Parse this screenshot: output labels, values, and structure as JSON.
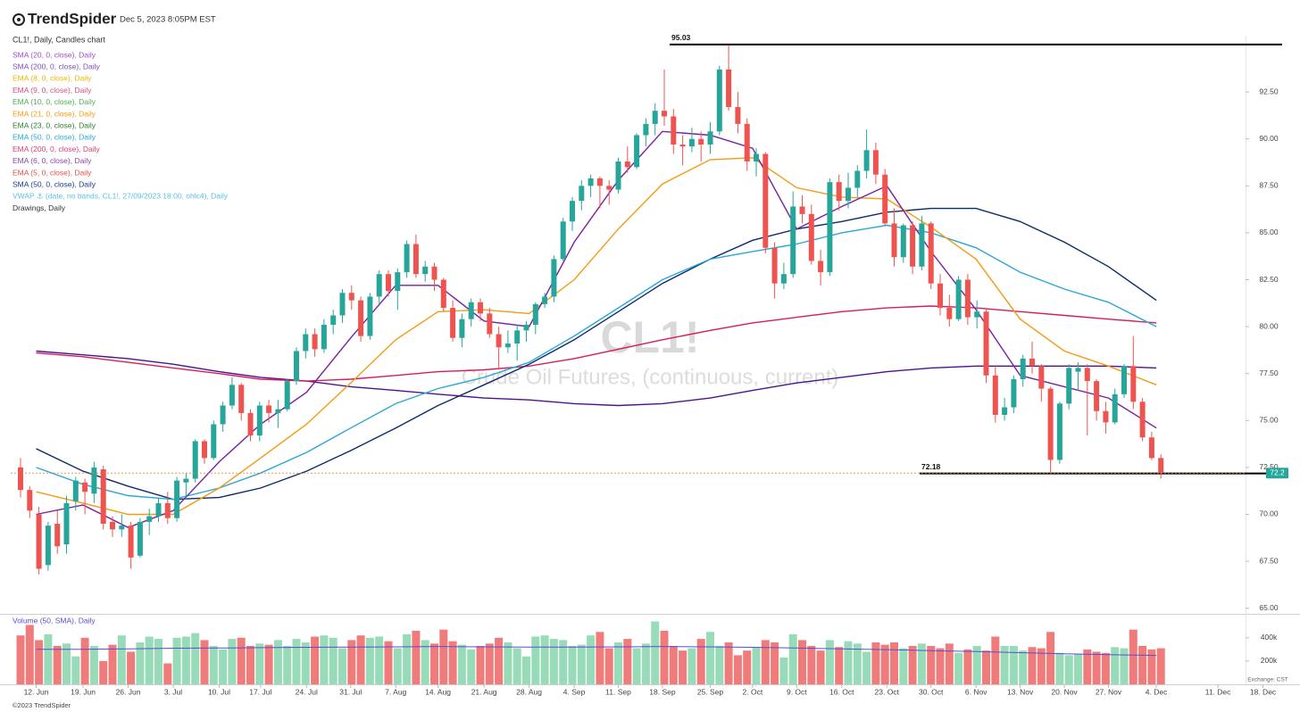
{
  "header": {
    "brand": "TrendSpider",
    "timestamp": "Dec 5, 2023 8:05PM EST"
  },
  "chart_data": {
    "type": "candlestick",
    "title": "CL1!, Daily, Candles chart",
    "watermark": "CL1!",
    "watermark_subtitle": "Crude Oil Futures, (continuous, current)",
    "up_color": "#26a69a",
    "down_color": "#ef5350",
    "ylim": [
      64.7,
      95.5
    ],
    "yticks": [
      {
        "value": 65,
        "label": "65.00"
      },
      {
        "value": 67.5,
        "label": "67.50"
      },
      {
        "value": 70,
        "label": "70.00"
      },
      {
        "value": 72.5,
        "label": "72.50"
      },
      {
        "value": 75,
        "label": "75.00"
      },
      {
        "value": 77.5,
        "label": "77.50"
      },
      {
        "value": 80,
        "label": "80.00"
      },
      {
        "value": 82.5,
        "label": "82.50"
      },
      {
        "value": 85,
        "label": "85.00"
      },
      {
        "value": 87.5,
        "label": "87.50"
      },
      {
        "value": 90,
        "label": "90.00"
      },
      {
        "value": 92.5,
        "label": "92.50"
      }
    ],
    "xticks": [
      {
        "value": 1.7,
        "label": "12. Jun"
      },
      {
        "value": 6.8,
        "label": "19. Jun"
      },
      {
        "value": 11.7,
        "label": "26. Jun"
      },
      {
        "value": 16.6,
        "label": "3. Jul"
      },
      {
        "value": 21.6,
        "label": "10. Jul"
      },
      {
        "value": 26.1,
        "label": "17. Jul"
      },
      {
        "value": 31.1,
        "label": "24. Jul"
      },
      {
        "value": 35.9,
        "label": "31. Jul"
      },
      {
        "value": 40.8,
        "label": "7. Aug"
      },
      {
        "value": 45.4,
        "label": "14. Aug"
      },
      {
        "value": 50.4,
        "label": "21. Aug"
      },
      {
        "value": 55.3,
        "label": "28. Aug"
      },
      {
        "value": 60.2,
        "label": "4. Sep"
      },
      {
        "value": 65.0,
        "label": "11. Sep"
      },
      {
        "value": 69.8,
        "label": "18. Sep"
      },
      {
        "value": 75.0,
        "label": "25. Sep"
      },
      {
        "value": 79.6,
        "label": "2. Oct"
      },
      {
        "value": 84.4,
        "label": "9. Oct"
      },
      {
        "value": 89.3,
        "label": "16. Oct"
      },
      {
        "value": 94.2,
        "label": "23. Oct"
      },
      {
        "value": 99.0,
        "label": "30. Oct"
      },
      {
        "value": 103.9,
        "label": "6. Nov"
      },
      {
        "value": 108.7,
        "label": "13. Nov"
      },
      {
        "value": 113.5,
        "label": "20. Nov"
      },
      {
        "value": 118.3,
        "label": "27. Nov"
      },
      {
        "value": 123.5,
        "label": "4. Dec"
      },
      {
        "value": 130.2,
        "label": "11. Dec"
      },
      {
        "value": 135.1,
        "label": "18. Dec"
      }
    ],
    "ohlc": [
      [
        72.5,
        73.0,
        70.9,
        71.3
      ],
      [
        71.3,
        71.5,
        69.8,
        70.2
      ],
      [
        70.0,
        70.4,
        66.8,
        67.1
      ],
      [
        67.3,
        69.6,
        67.0,
        69.4
      ],
      [
        69.5,
        70.2,
        67.9,
        68.3
      ],
      [
        68.4,
        71.0,
        67.9,
        70.6
      ],
      [
        70.7,
        72.0,
        70.2,
        71.8
      ],
      [
        71.7,
        71.9,
        70.0,
        71.2
      ],
      [
        71.1,
        72.8,
        70.6,
        72.5
      ],
      [
        72.4,
        72.6,
        69.2,
        69.5
      ],
      [
        69.6,
        69.9,
        68.8,
        69.2
      ],
      [
        69.2,
        70.0,
        68.8,
        69.4
      ],
      [
        69.4,
        69.6,
        67.1,
        67.7
      ],
      [
        67.8,
        69.8,
        67.7,
        69.6
      ],
      [
        69.6,
        70.3,
        68.9,
        69.9
      ],
      [
        69.9,
        70.9,
        69.6,
        70.6
      ],
      [
        70.6,
        71.2,
        69.5,
        69.8
      ],
      [
        69.8,
        72.0,
        69.6,
        71.8
      ],
      [
        71.7,
        72.2,
        70.8,
        71.9
      ],
      [
        71.9,
        74.0,
        71.7,
        73.9
      ],
      [
        73.9,
        74.0,
        72.7,
        73.0
      ],
      [
        73.0,
        75.0,
        72.9,
        74.8
      ],
      [
        74.8,
        76.0,
        74.4,
        75.8
      ],
      [
        75.8,
        77.3,
        75.6,
        76.9
      ],
      [
        76.9,
        77.0,
        75.0,
        75.4
      ],
      [
        75.4,
        75.6,
        73.9,
        74.2
      ],
      [
        74.2,
        76.0,
        73.9,
        75.8
      ],
      [
        75.8,
        76.1,
        74.9,
        75.4
      ],
      [
        75.4,
        76.1,
        74.6,
        75.6
      ],
      [
        75.6,
        77.2,
        75.5,
        77.1
      ],
      [
        77.1,
        78.9,
        76.9,
        78.7
      ],
      [
        78.7,
        79.9,
        78.3,
        79.6
      ],
      [
        79.6,
        79.9,
        78.4,
        78.8
      ],
      [
        78.8,
        80.4,
        78.6,
        80.1
      ],
      [
        80.1,
        80.9,
        79.6,
        80.6
      ],
      [
        80.6,
        82.0,
        80.2,
        81.8
      ],
      [
        81.8,
        82.2,
        80.9,
        81.4
      ],
      [
        81.4,
        81.6,
        79.2,
        79.5
      ],
      [
        79.5,
        81.8,
        79.3,
        81.6
      ],
      [
        81.6,
        83.0,
        81.2,
        82.8
      ],
      [
        82.8,
        83.0,
        81.6,
        81.9
      ],
      [
        81.9,
        83.1,
        80.9,
        82.9
      ],
      [
        82.9,
        84.6,
        82.6,
        84.4
      ],
      [
        84.4,
        84.9,
        82.6,
        82.8
      ],
      [
        82.8,
        83.5,
        82.4,
        83.2
      ],
      [
        83.2,
        83.4,
        81.9,
        82.5
      ],
      [
        82.5,
        82.6,
        80.8,
        81.0
      ],
      [
        81.0,
        81.4,
        79.2,
        79.4
      ],
      [
        79.4,
        80.7,
        78.9,
        80.4
      ],
      [
        80.4,
        81.5,
        80.0,
        81.3
      ],
      [
        81.3,
        81.5,
        80.3,
        80.7
      ],
      [
        80.7,
        81.0,
        79.4,
        79.6
      ],
      [
        79.6,
        80.0,
        77.7,
        78.9
      ],
      [
        78.9,
        79.8,
        78.6,
        79.1
      ],
      [
        79.1,
        80.1,
        78.2,
        79.8
      ],
      [
        79.8,
        80.3,
        79.2,
        80.1
      ],
      [
        80.1,
        81.3,
        79.6,
        81.2
      ],
      [
        81.2,
        81.8,
        81.0,
        81.6
      ],
      [
        81.6,
        83.8,
        81.3,
        83.6
      ],
      [
        83.6,
        85.8,
        83.5,
        85.6
      ],
      [
        85.6,
        86.9,
        85.1,
        86.7
      ],
      [
        86.7,
        87.8,
        86.2,
        87.5
      ],
      [
        87.5,
        88.1,
        86.9,
        87.9
      ],
      [
        87.9,
        88.0,
        86.3,
        87.5
      ],
      [
        87.5,
        87.8,
        86.5,
        87.3
      ],
      [
        87.3,
        89.0,
        87.1,
        88.8
      ],
      [
        88.8,
        89.6,
        88.2,
        88.5
      ],
      [
        88.5,
        90.3,
        88.4,
        90.2
      ],
      [
        90.2,
        91.1,
        89.6,
        90.8
      ],
      [
        90.8,
        91.9,
        90.2,
        91.5
      ],
      [
        91.5,
        93.7,
        90.7,
        91.2
      ],
      [
        91.2,
        91.6,
        89.2,
        89.7
      ],
      [
        89.7,
        90.2,
        88.6,
        89.6
      ],
      [
        89.6,
        90.6,
        89.3,
        90.0
      ],
      [
        90.0,
        90.4,
        88.8,
        89.7
      ],
      [
        89.7,
        90.9,
        89.2,
        90.4
      ],
      [
        90.4,
        93.9,
        90.2,
        93.7
      ],
      [
        93.7,
        95.0,
        91.5,
        91.7
      ],
      [
        91.7,
        92.5,
        90.3,
        90.8
      ],
      [
        90.8,
        91.1,
        88.3,
        88.8
      ],
      [
        88.8,
        89.5,
        88.0,
        89.2
      ],
      [
        89.2,
        89.3,
        83.9,
        84.2
      ],
      [
        84.2,
        84.5,
        81.5,
        82.3
      ],
      [
        82.3,
        83.4,
        82.0,
        82.8
      ],
      [
        82.8,
        87.2,
        82.6,
        86.4
      ],
      [
        86.4,
        87.0,
        85.5,
        86.0
      ],
      [
        86.0,
        86.5,
        83.3,
        83.5
      ],
      [
        83.5,
        84.1,
        82.2,
        82.9
      ],
      [
        82.9,
        87.9,
        82.7,
        87.7
      ],
      [
        87.7,
        88.1,
        86.2,
        86.7
      ],
      [
        86.7,
        88.2,
        86.3,
        87.4
      ],
      [
        87.4,
        88.6,
        86.9,
        88.3
      ],
      [
        88.3,
        90.5,
        87.9,
        89.4
      ],
      [
        89.4,
        89.8,
        87.6,
        88.1
      ],
      [
        88.1,
        88.4,
        85.4,
        85.5
      ],
      [
        85.5,
        86.3,
        83.2,
        83.7
      ],
      [
        83.7,
        85.5,
        83.4,
        85.4
      ],
      [
        85.4,
        85.6,
        82.8,
        83.2
      ],
      [
        83.2,
        85.9,
        83.0,
        85.5
      ],
      [
        85.5,
        85.6,
        82.0,
        82.3
      ],
      [
        82.3,
        82.8,
        80.6,
        81.0
      ],
      [
        81.0,
        81.7,
        80.0,
        80.4
      ],
      [
        80.4,
        82.7,
        80.3,
        82.5
      ],
      [
        82.5,
        82.8,
        80.1,
        80.5
      ],
      [
        80.5,
        81.4,
        79.9,
        80.8
      ],
      [
        80.8,
        80.9,
        77.0,
        77.4
      ],
      [
        77.4,
        77.9,
        74.9,
        75.3
      ],
      [
        75.3,
        76.2,
        75.0,
        75.7
      ],
      [
        75.7,
        77.4,
        75.4,
        77.2
      ],
      [
        77.2,
        78.5,
        76.8,
        78.3
      ],
      [
        78.3,
        79.2,
        77.5,
        77.9
      ],
      [
        77.9,
        78.0,
        76.0,
        76.7
      ],
      [
        76.7,
        76.8,
        72.2,
        72.9
      ],
      [
        72.9,
        76.0,
        72.7,
        75.9
      ],
      [
        75.9,
        78.0,
        75.6,
        77.8
      ],
      [
        77.6,
        78.1,
        76.6,
        77.8
      ],
      [
        77.8,
        78.0,
        74.2,
        77.1
      ],
      [
        77.1,
        77.2,
        75.0,
        75.5
      ],
      [
        75.5,
        76.0,
        74.3,
        74.9
      ],
      [
        74.9,
        76.7,
        74.8,
        76.4
      ],
      [
        76.4,
        78.0,
        76.2,
        77.9
      ],
      [
        77.9,
        79.5,
        75.6,
        76.0
      ],
      [
        76.0,
        76.2,
        73.9,
        74.1
      ],
      [
        74.1,
        74.4,
        72.9,
        73.0
      ],
      [
        73.0,
        73.2,
        71.9,
        72.2
      ]
    ],
    "overlays": [
      {
        "color": "#4a148c",
        "values": [
          78.7,
          78.5,
          78.3,
          78.0,
          77.6,
          77.3,
          77.1,
          76.8,
          76.6,
          76.4,
          76.2,
          76.1,
          75.9,
          75.8,
          75.9,
          76.2,
          76.6,
          77.0,
          77.3,
          77.6,
          77.8,
          77.9,
          77.9,
          77.9,
          77.9,
          77.8
        ]
      },
      {
        "color": "#d81b60",
        "values": [
          78.6,
          78.4,
          78.1,
          77.8,
          77.5,
          77.2,
          77.1,
          77.2,
          77.4,
          77.6,
          77.7,
          77.9,
          78.3,
          78.8,
          79.3,
          79.8,
          80.2,
          80.5,
          80.8,
          81.0,
          81.1,
          81.0,
          80.8,
          80.6,
          80.4,
          80.2
        ]
      },
      {
        "color": "#0d2a6e",
        "values": [
          73.5,
          72.3,
          71.5,
          70.8,
          70.9,
          71.4,
          72.3,
          73.4,
          74.6,
          75.8,
          76.9,
          78.0,
          79.3,
          80.8,
          82.3,
          83.6,
          84.6,
          85.2,
          85.6,
          86.1,
          86.3,
          86.3,
          85.6,
          84.5,
          83.2,
          81.4
        ]
      },
      {
        "color": "#29a8d6",
        "values": [
          72.5,
          71.6,
          71.0,
          70.8,
          71.4,
          72.2,
          73.3,
          74.6,
          75.9,
          76.7,
          77.3,
          78.1,
          79.5,
          81.0,
          82.5,
          83.6,
          84.0,
          84.4,
          85.0,
          85.4,
          85.0,
          84.2,
          82.9,
          82.0,
          81.3,
          80.0
        ]
      },
      {
        "color": "#f39c12",
        "values": [
          71.2,
          70.6,
          70.0,
          70.0,
          71.4,
          73.0,
          74.8,
          77.0,
          79.3,
          80.8,
          80.9,
          80.7,
          82.5,
          85.2,
          87.6,
          88.9,
          89.0,
          87.4,
          86.9,
          86.8,
          85.3,
          83.6,
          80.4,
          78.7,
          77.9,
          76.9
        ]
      },
      {
        "color": "#7b1fa2",
        "values": [
          70.0,
          70.5,
          69.3,
          70.2,
          72.8,
          74.8,
          76.5,
          79.4,
          82.2,
          82.2,
          80.3,
          80.0,
          84.5,
          87.8,
          90.4,
          90.2,
          89.5,
          85.2,
          86.4,
          87.5,
          84.0,
          80.9,
          77.4,
          76.8,
          76.2,
          74.6
        ]
      }
    ],
    "indicators": [
      {
        "name": "SMA (20, 0, close), Daily",
        "color": "#9c4fbf"
      },
      {
        "name": "SMA (200, 0, close), Daily",
        "color": "#7a4fbf"
      },
      {
        "name": "EMA (8, 0, close), Daily",
        "color": "#e6b800"
      },
      {
        "name": "EMA (9, 0, close), Daily",
        "color": "#d45080"
      },
      {
        "name": "EMA (10, 0, close), Daily",
        "color": "#4caf50"
      },
      {
        "name": "EMA (21, 0, close), Daily",
        "color": "#f39c12"
      },
      {
        "name": "EMA (23, 0, close), Daily",
        "color": "#2e7d32"
      },
      {
        "name": "EMA (50, 0, close), Daily",
        "color": "#29a8d6"
      },
      {
        "name": "EMA (200, 0, close), Daily",
        "color": "#e04070"
      },
      {
        "name": "EMA (6, 0, close), Daily",
        "color": "#8e44ad"
      },
      {
        "name": "EMA (5, 0, close), Daily",
        "color": "#e05050"
      },
      {
        "name": "SMA (50, 0, close), Daily",
        "color": "#1a3a8a"
      },
      {
        "name": "VWAP ⚓ (date, no bands, CL1!, 27/09/2023 18:00, ohlc4), Daily",
        "color": "#5bc0de"
      },
      {
        "name": "Drawings, Daily",
        "color": "#333333"
      }
    ],
    "levels": [
      95.03,
      72.18
    ],
    "last_price": 72.2,
    "last_price_color": "#26a69a",
    "volume": {
      "title": "Volume (50, SMA), Daily",
      "up_color": "#98dbb9",
      "down_color": "#ef7b7b",
      "sma_color": "#5a4fcf",
      "ylim": [
        0,
        590000
      ],
      "yticks": [
        {
          "value": 200000,
          "label": "200k"
        },
        {
          "value": 400000,
          "label": "400k"
        }
      ],
      "exchange": "Exchange: CST",
      "values": [
        420000,
        510000,
        380000,
        430000,
        330000,
        350000,
        240000,
        400000,
        330000,
        200000,
        340000,
        420000,
        280000,
        360000,
        410000,
        390000,
        180000,
        400000,
        410000,
        440000,
        380000,
        330000,
        300000,
        390000,
        400000,
        330000,
        350000,
        340000,
        380000,
        330000,
        390000,
        360000,
        410000,
        420000,
        400000,
        310000,
        380000,
        420000,
        400000,
        410000,
        370000,
        310000,
        430000,
        460000,
        380000,
        350000,
        470000,
        370000,
        340000,
        300000,
        330000,
        350000,
        400000,
        360000,
        310000,
        240000,
        410000,
        420000,
        390000,
        380000,
        330000,
        340000,
        420000,
        450000,
        310000,
        360000,
        390000,
        310000,
        350000,
        540000,
        460000,
        330000,
        290000,
        310000,
        390000,
        450000,
        330000,
        360000,
        250000,
        290000,
        320000,
        380000,
        360000,
        230000,
        430000,
        380000,
        330000,
        290000,
        380000,
        320000,
        370000,
        350000,
        280000,
        360000,
        340000,
        360000,
        310000,
        330000,
        350000,
        330000,
        310000,
        350000,
        270000,
        300000,
        330000,
        290000,
        410000,
        330000,
        330000,
        290000,
        320000,
        310000,
        450000,
        270000,
        250000,
        260000,
        300000,
        280000,
        270000,
        320000,
        310000,
        470000,
        330000,
        300000,
        310000
      ],
      "sma": [
        300000,
        300000,
        305000,
        310000,
        312000,
        315000,
        318000,
        320000,
        322000,
        325000,
        322000,
        320000,
        320000,
        322000,
        325000,
        322000,
        318000,
        312000,
        305000,
        298000,
        290000,
        282000,
        272000,
        262000,
        255000,
        248000
      ]
    }
  },
  "footer": "©2023 TrendSpider"
}
